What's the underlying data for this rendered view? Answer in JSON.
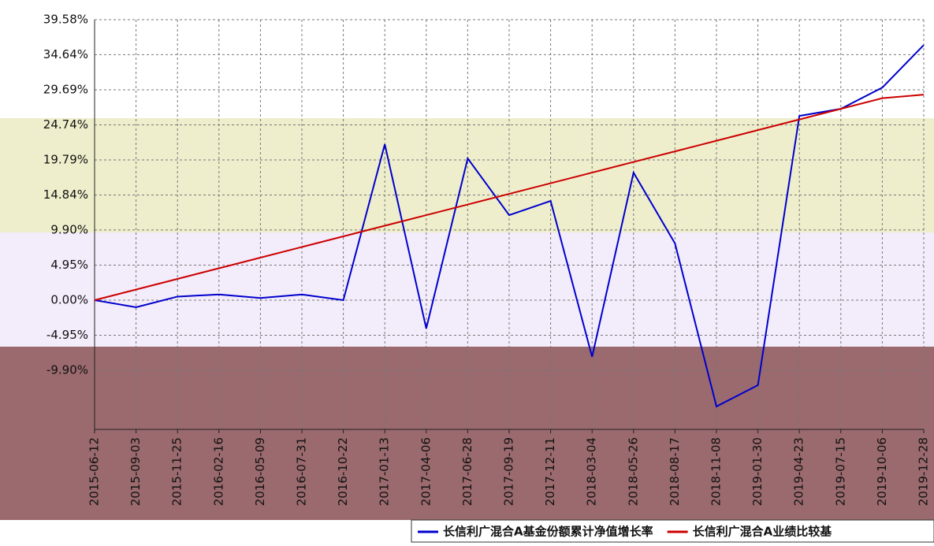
{
  "chart_data": {
    "type": "line",
    "categories": [
      "2015-06-12",
      "2015-09-03",
      "2015-11-25",
      "2016-02-16",
      "2016-05-09",
      "2016-07-31",
      "2016-10-22",
      "2017-01-13",
      "2017-04-06",
      "2017-06-28",
      "2017-09-19",
      "2017-12-11",
      "2018-03-04",
      "2018-05-26",
      "2018-08-17",
      "2018-11-08",
      "2019-01-30",
      "2019-04-23",
      "2019-07-15",
      "2019-10-06",
      "2019-12-28"
    ],
    "series": [
      {
        "name": "长信利广混合A基金份额累计净值增长率",
        "color": "#0000cc",
        "values": [
          0,
          -1,
          0.5,
          0.8,
          0.3,
          0.8,
          0,
          22,
          -4,
          20,
          12,
          14,
          -8,
          18,
          8,
          -15,
          -12,
          26,
          27,
          30,
          36
        ]
      },
      {
        "name": "长信利广混合A业绩比较基",
        "color": "#cc0000",
        "values": [
          0,
          1.5,
          3,
          4.5,
          6,
          7.5,
          9,
          10.5,
          12,
          13.5,
          15,
          16.5,
          18,
          19.5,
          21,
          22.5,
          24,
          25.5,
          27,
          28.5,
          29
        ]
      }
    ],
    "ylim": [
      -18.24,
      39.58
    ],
    "yticks": [
      {
        "value": 39.58,
        "label": "39.58%"
      },
      {
        "value": 34.64,
        "label": "34.64%"
      },
      {
        "value": 29.69,
        "label": "29.69%"
      },
      {
        "value": 24.74,
        "label": "24.74%"
      },
      {
        "value": 19.79,
        "label": "19.79%"
      },
      {
        "value": 14.84,
        "label": "14.84%"
      },
      {
        "value": 9.9,
        "label": "9.90%"
      },
      {
        "value": 4.95,
        "label": "4.95%"
      },
      {
        "value": 0,
        "label": "0.00%"
      },
      {
        "value": -4.95,
        "label": "-4.95%"
      },
      {
        "value": -9.9,
        "label": "-9.90%"
      }
    ],
    "grid": true
  }
}
